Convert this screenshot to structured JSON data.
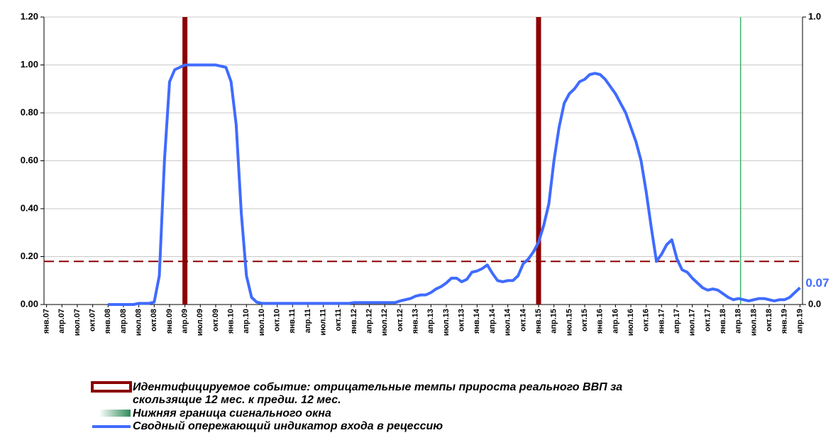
{
  "chart_data": {
    "type": "line",
    "categories": [
      "янв.07",
      null,
      null,
      "апр.07",
      null,
      null,
      "июл.07",
      null,
      null,
      "окт.07",
      null,
      null,
      "янв.08",
      null,
      null,
      "апр.08",
      null,
      null,
      "июл.08",
      null,
      null,
      "окт.08",
      null,
      null,
      "янв.09",
      null,
      null,
      "апр.09",
      null,
      null,
      "июл.09",
      null,
      null,
      "окт.09",
      null,
      null,
      "янв.10",
      null,
      null,
      "апр.10",
      null,
      null,
      "июл.10",
      null,
      null,
      "окт.10",
      null,
      null,
      "янв.11",
      null,
      null,
      "апр.11",
      null,
      null,
      "июл.11",
      null,
      null,
      "окт.11",
      null,
      null,
      "янв.12",
      null,
      null,
      "апр.12",
      null,
      null,
      "июл.12",
      null,
      null,
      "окт.12",
      null,
      null,
      "янв.13",
      null,
      null,
      "апр.13",
      null,
      null,
      "июл.13",
      null,
      null,
      "окт.13",
      null,
      null,
      "янв.14",
      null,
      null,
      "апр.14",
      null,
      null,
      "июл.14",
      null,
      null,
      "окт.14",
      null,
      null,
      "янв.15",
      null,
      null,
      "апр.15",
      null,
      null,
      "июл.15",
      null,
      null,
      "окт.15",
      null,
      null,
      "янв.16",
      null,
      null,
      "апр.16",
      null,
      null,
      "июл.16",
      null,
      null,
      "окт.16",
      null,
      null,
      "янв.17",
      null,
      null,
      "апр.17",
      null,
      null,
      "июл.17",
      null,
      null,
      "окт.17",
      null,
      null,
      "янв.18",
      null,
      null,
      "апр.18",
      null,
      null,
      "июл.18",
      null,
      null,
      "окт.18",
      null,
      null,
      "янв.19",
      null,
      null,
      "апр.19"
    ],
    "series": [
      {
        "name": "Сводный опережающий индикатор входа в рецессию",
        "color": "#3f6bff",
        "values": [
          null,
          null,
          null,
          null,
          null,
          null,
          null,
          null,
          null,
          null,
          null,
          null,
          0,
          0,
          0,
          0,
          0,
          0,
          0.005,
          0.005,
          0.005,
          0.01,
          0.12,
          0.6,
          0.93,
          0.98,
          0.99,
          1,
          1,
          1,
          1,
          1,
          1,
          1,
          0.995,
          0.99,
          0.93,
          0.75,
          0.38,
          0.12,
          0.03,
          0.01,
          0.005,
          0.005,
          0.005,
          0.005,
          0.005,
          0.005,
          0.005,
          0.005,
          0.005,
          0.005,
          0.005,
          0.005,
          0.005,
          0.005,
          0.005,
          0.005,
          0.005,
          0.005,
          0.008,
          0.008,
          0.008,
          0.008,
          0.008,
          0.008,
          0.008,
          0.008,
          0.008,
          0.015,
          0.02,
          0.025,
          0.035,
          0.04,
          0.04,
          0.05,
          0.065,
          0.075,
          0.09,
          0.11,
          0.11,
          0.095,
          0.105,
          0.135,
          0.14,
          0.15,
          0.165,
          0.13,
          0.1,
          0.095,
          0.1,
          0.1,
          0.12,
          0.17,
          0.19,
          0.22,
          0.26,
          0.33,
          0.42,
          0.6,
          0.74,
          0.84,
          0.88,
          0.9,
          0.93,
          0.94,
          0.96,
          0.965,
          0.96,
          0.94,
          0.91,
          0.88,
          0.84,
          0.8,
          0.74,
          0.68,
          0.6,
          0.47,
          0.32,
          0.18,
          0.21,
          0.25,
          0.27,
          0.19,
          0.145,
          0.135,
          0.11,
          0.09,
          0.07,
          0.06,
          0.065,
          0.06,
          0.045,
          0.03,
          0.02,
          0.025,
          0.02,
          0.015,
          0.02,
          0.025,
          0.025,
          0.02,
          0.015,
          0.02,
          0.02,
          0.03,
          0.05,
          0.07
        ]
      }
    ],
    "events": {
      "name": "Идентифицируемое событие: отрицательные темпы прироста реального ВВП за скользящие 12 мес. к предш. 12 мес.",
      "color": "#8b0000",
      "categories": [
        "апр.09",
        "янв.15"
      ]
    },
    "window": {
      "name": "Нижняя граница сигнального окна",
      "color": "#3cb371",
      "categories": [
        "апр.18"
      ]
    },
    "threshold": {
      "value": 0.18,
      "color": "#8b0000"
    },
    "ylim": [
      0,
      1.2
    ],
    "yticks": [
      {
        "value": 0,
        "label": "0.00"
      },
      {
        "value": 0.2,
        "label": "0.20"
      },
      {
        "value": 0.4,
        "label": "0.40"
      },
      {
        "value": 0.6,
        "label": "0.60"
      },
      {
        "value": 0.8,
        "label": "0.80"
      },
      {
        "value": 1,
        "label": "1.00"
      },
      {
        "value": 1.2,
        "label": "1.20"
      }
    ],
    "y2lim": [
      0,
      1
    ],
    "y2ticks": [
      {
        "value": 0,
        "label": "0.0"
      },
      {
        "value": 1,
        "label": "1.0"
      }
    ],
    "grid": true
  }
}
